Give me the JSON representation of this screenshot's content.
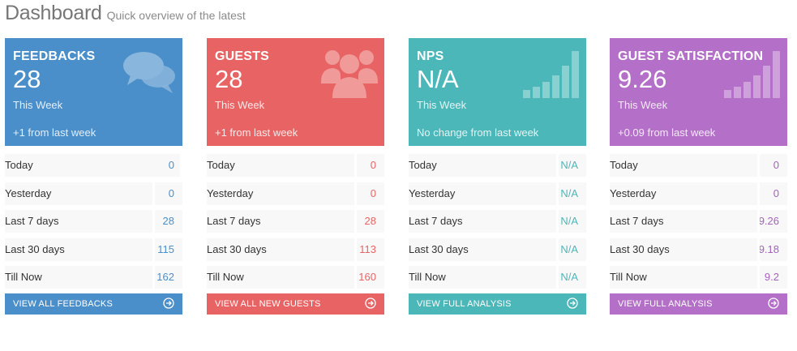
{
  "header": {
    "title": "Dashboard",
    "subtitle": "Quick overview of the latest"
  },
  "cards": [
    {
      "title": "FEEDBACKS",
      "value": "28",
      "period": "This Week",
      "change": "+1 from last week",
      "icon": "chat-bubbles-icon",
      "color": "#4a8fca",
      "rows": [
        {
          "label": "Today",
          "value": "0"
        },
        {
          "label": "Yesterday",
          "value": "0"
        },
        {
          "label": "Last 7 days",
          "value": "28"
        },
        {
          "label": "Last 30 days",
          "value": "115"
        },
        {
          "label": "Till Now",
          "value": "162"
        }
      ],
      "footer": "VIEW ALL FEEDBACKS"
    },
    {
      "title": "GUESTS",
      "value": "28",
      "period": "This Week",
      "change": "+1 from last week",
      "icon": "users-group-icon",
      "color": "#e86464",
      "rows": [
        {
          "label": "Today",
          "value": "0"
        },
        {
          "label": "Yesterday",
          "value": "0"
        },
        {
          "label": "Last 7 days",
          "value": "28"
        },
        {
          "label": "Last 30 days",
          "value": "113"
        },
        {
          "label": "Till Now",
          "value": "160"
        }
      ],
      "footer": "VIEW ALL NEW GUESTS"
    },
    {
      "title": "NPS",
      "value": "N/A",
      "period": "This Week",
      "change": "No change from last week",
      "icon": "signal-bars-icon",
      "color": "#4bb7b9",
      "rows": [
        {
          "label": "Today",
          "value": "N/A"
        },
        {
          "label": "Yesterday",
          "value": "N/A"
        },
        {
          "label": "Last 7 days",
          "value": "N/A"
        },
        {
          "label": "Last 30 days",
          "value": "N/A"
        },
        {
          "label": "Till Now",
          "value": "N/A"
        }
      ],
      "footer": "VIEW FULL ANALYSIS"
    },
    {
      "title": "GUEST SATISFACTION",
      "value": "9.26",
      "period": "This Week",
      "change": "+0.09 from last week",
      "icon": "signal-bars-icon",
      "color": "#b46fc8",
      "rows": [
        {
          "label": "Today",
          "value": "0"
        },
        {
          "label": "Yesterday",
          "value": "0"
        },
        {
          "label": "Last 7 days",
          "value": "9.26"
        },
        {
          "label": "Last 30 days",
          "value": "9.18"
        },
        {
          "label": "Till Now",
          "value": "9.2"
        }
      ],
      "footer": "VIEW FULL ANALYSIS"
    }
  ]
}
